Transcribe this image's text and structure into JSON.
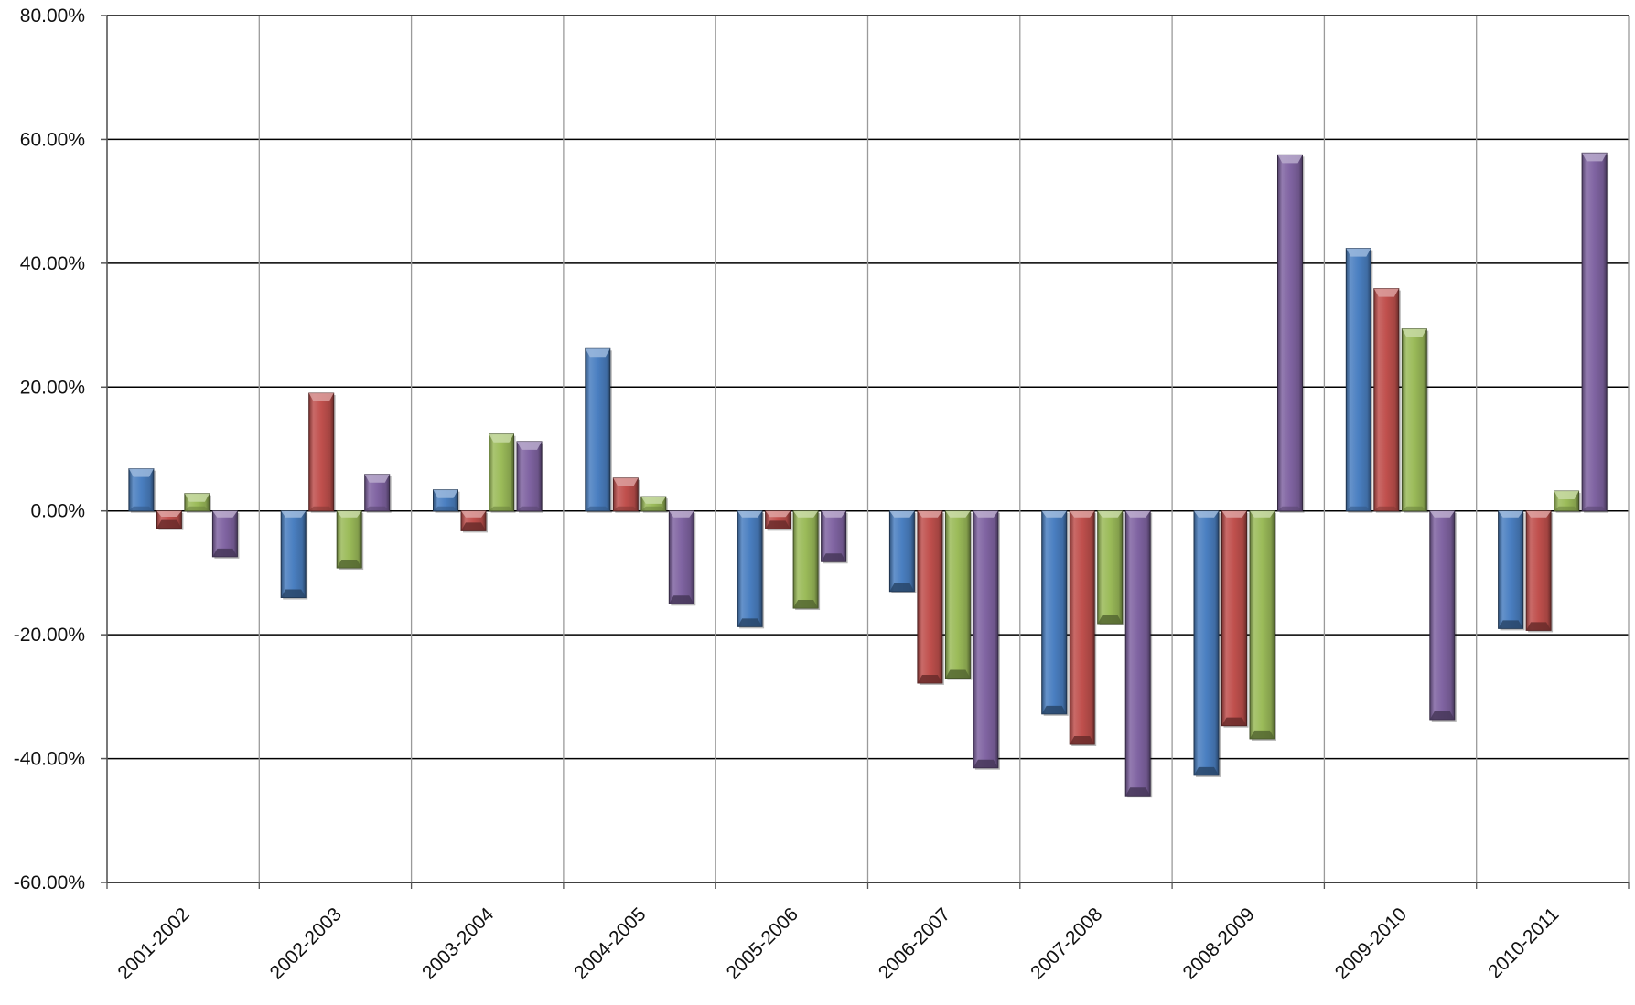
{
  "chart_data": {
    "type": "bar",
    "title": "",
    "xlabel": "",
    "ylabel": "",
    "ylim": [
      -60,
      80
    ],
    "y_tick_values": [
      -60,
      -40,
      -20,
      0,
      20,
      40,
      60,
      80
    ],
    "y_tick_labels": [
      "-60.00%",
      "-40.00%",
      "-20.00%",
      "0.00%",
      "20.00%",
      "40.00%",
      "60.00%",
      "80.00%"
    ],
    "grid": true,
    "legend": "none",
    "categories": [
      "2001-2002",
      "2002-2003",
      "2003-2004",
      "2004-2005",
      "2005-2006",
      "2006-2007",
      "2007-2008",
      "2008-2009",
      "2009-2010",
      "2010-2011"
    ],
    "series": [
      {
        "color": "#4a7fc1",
        "values": [
          6.8,
          -14.0,
          3.4,
          26.2,
          -18.7,
          -13.0,
          -32.8,
          -42.7,
          42.4,
          -19.0
        ]
      },
      {
        "color": "#c0504d",
        "values": [
          -2.8,
          19.0,
          -3.2,
          5.3,
          -2.9,
          -27.8,
          -37.7,
          -34.7,
          35.9,
          -19.3
        ]
      },
      {
        "color": "#9bbb59",
        "values": [
          2.8,
          -9.2,
          12.4,
          2.3,
          -15.7,
          -27.0,
          -18.2,
          -36.8,
          29.4,
          3.2
        ]
      },
      {
        "color": "#8064a2",
        "values": [
          -7.4,
          5.9,
          11.2,
          -15.0,
          -8.2,
          -41.5,
          -46.0,
          57.5,
          -33.7,
          57.8
        ]
      }
    ]
  }
}
